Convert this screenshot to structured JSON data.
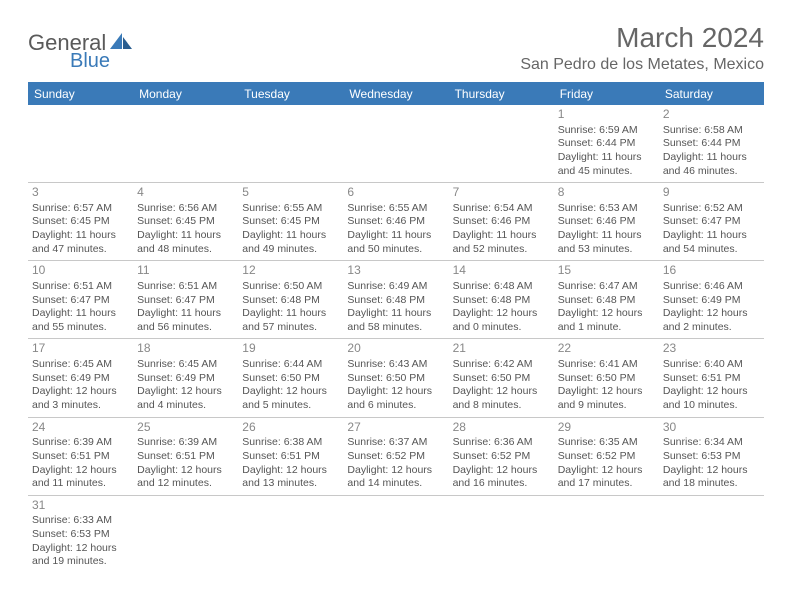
{
  "brand": {
    "part1": "General",
    "part2": "Blue"
  },
  "title": "March 2024",
  "location": "San Pedro de los Metates, Mexico",
  "colors": {
    "header_bg": "#3a7ab8",
    "header_fg": "#ffffff",
    "text": "#555555",
    "daynum": "#888888",
    "border": "#c8c8c8",
    "background": "#ffffff"
  },
  "weekdays": [
    "Sunday",
    "Monday",
    "Tuesday",
    "Wednesday",
    "Thursday",
    "Friday",
    "Saturday"
  ],
  "weeks": [
    [
      null,
      null,
      null,
      null,
      null,
      {
        "n": "1",
        "sr": "Sunrise: 6:59 AM",
        "ss": "Sunset: 6:44 PM",
        "d1": "Daylight: 11 hours",
        "d2": "and 45 minutes."
      },
      {
        "n": "2",
        "sr": "Sunrise: 6:58 AM",
        "ss": "Sunset: 6:44 PM",
        "d1": "Daylight: 11 hours",
        "d2": "and 46 minutes."
      }
    ],
    [
      {
        "n": "3",
        "sr": "Sunrise: 6:57 AM",
        "ss": "Sunset: 6:45 PM",
        "d1": "Daylight: 11 hours",
        "d2": "and 47 minutes."
      },
      {
        "n": "4",
        "sr": "Sunrise: 6:56 AM",
        "ss": "Sunset: 6:45 PM",
        "d1": "Daylight: 11 hours",
        "d2": "and 48 minutes."
      },
      {
        "n": "5",
        "sr": "Sunrise: 6:55 AM",
        "ss": "Sunset: 6:45 PM",
        "d1": "Daylight: 11 hours",
        "d2": "and 49 minutes."
      },
      {
        "n": "6",
        "sr": "Sunrise: 6:55 AM",
        "ss": "Sunset: 6:46 PM",
        "d1": "Daylight: 11 hours",
        "d2": "and 50 minutes."
      },
      {
        "n": "7",
        "sr": "Sunrise: 6:54 AM",
        "ss": "Sunset: 6:46 PM",
        "d1": "Daylight: 11 hours",
        "d2": "and 52 minutes."
      },
      {
        "n": "8",
        "sr": "Sunrise: 6:53 AM",
        "ss": "Sunset: 6:46 PM",
        "d1": "Daylight: 11 hours",
        "d2": "and 53 minutes."
      },
      {
        "n": "9",
        "sr": "Sunrise: 6:52 AM",
        "ss": "Sunset: 6:47 PM",
        "d1": "Daylight: 11 hours",
        "d2": "and 54 minutes."
      }
    ],
    [
      {
        "n": "10",
        "sr": "Sunrise: 6:51 AM",
        "ss": "Sunset: 6:47 PM",
        "d1": "Daylight: 11 hours",
        "d2": "and 55 minutes."
      },
      {
        "n": "11",
        "sr": "Sunrise: 6:51 AM",
        "ss": "Sunset: 6:47 PM",
        "d1": "Daylight: 11 hours",
        "d2": "and 56 minutes."
      },
      {
        "n": "12",
        "sr": "Sunrise: 6:50 AM",
        "ss": "Sunset: 6:48 PM",
        "d1": "Daylight: 11 hours",
        "d2": "and 57 minutes."
      },
      {
        "n": "13",
        "sr": "Sunrise: 6:49 AM",
        "ss": "Sunset: 6:48 PM",
        "d1": "Daylight: 11 hours",
        "d2": "and 58 minutes."
      },
      {
        "n": "14",
        "sr": "Sunrise: 6:48 AM",
        "ss": "Sunset: 6:48 PM",
        "d1": "Daylight: 12 hours",
        "d2": "and 0 minutes."
      },
      {
        "n": "15",
        "sr": "Sunrise: 6:47 AM",
        "ss": "Sunset: 6:48 PM",
        "d1": "Daylight: 12 hours",
        "d2": "and 1 minute."
      },
      {
        "n": "16",
        "sr": "Sunrise: 6:46 AM",
        "ss": "Sunset: 6:49 PM",
        "d1": "Daylight: 12 hours",
        "d2": "and 2 minutes."
      }
    ],
    [
      {
        "n": "17",
        "sr": "Sunrise: 6:45 AM",
        "ss": "Sunset: 6:49 PM",
        "d1": "Daylight: 12 hours",
        "d2": "and 3 minutes."
      },
      {
        "n": "18",
        "sr": "Sunrise: 6:45 AM",
        "ss": "Sunset: 6:49 PM",
        "d1": "Daylight: 12 hours",
        "d2": "and 4 minutes."
      },
      {
        "n": "19",
        "sr": "Sunrise: 6:44 AM",
        "ss": "Sunset: 6:50 PM",
        "d1": "Daylight: 12 hours",
        "d2": "and 5 minutes."
      },
      {
        "n": "20",
        "sr": "Sunrise: 6:43 AM",
        "ss": "Sunset: 6:50 PM",
        "d1": "Daylight: 12 hours",
        "d2": "and 6 minutes."
      },
      {
        "n": "21",
        "sr": "Sunrise: 6:42 AM",
        "ss": "Sunset: 6:50 PM",
        "d1": "Daylight: 12 hours",
        "d2": "and 8 minutes."
      },
      {
        "n": "22",
        "sr": "Sunrise: 6:41 AM",
        "ss": "Sunset: 6:50 PM",
        "d1": "Daylight: 12 hours",
        "d2": "and 9 minutes."
      },
      {
        "n": "23",
        "sr": "Sunrise: 6:40 AM",
        "ss": "Sunset: 6:51 PM",
        "d1": "Daylight: 12 hours",
        "d2": "and 10 minutes."
      }
    ],
    [
      {
        "n": "24",
        "sr": "Sunrise: 6:39 AM",
        "ss": "Sunset: 6:51 PM",
        "d1": "Daylight: 12 hours",
        "d2": "and 11 minutes."
      },
      {
        "n": "25",
        "sr": "Sunrise: 6:39 AM",
        "ss": "Sunset: 6:51 PM",
        "d1": "Daylight: 12 hours",
        "d2": "and 12 minutes."
      },
      {
        "n": "26",
        "sr": "Sunrise: 6:38 AM",
        "ss": "Sunset: 6:51 PM",
        "d1": "Daylight: 12 hours",
        "d2": "and 13 minutes."
      },
      {
        "n": "27",
        "sr": "Sunrise: 6:37 AM",
        "ss": "Sunset: 6:52 PM",
        "d1": "Daylight: 12 hours",
        "d2": "and 14 minutes."
      },
      {
        "n": "28",
        "sr": "Sunrise: 6:36 AM",
        "ss": "Sunset: 6:52 PM",
        "d1": "Daylight: 12 hours",
        "d2": "and 16 minutes."
      },
      {
        "n": "29",
        "sr": "Sunrise: 6:35 AM",
        "ss": "Sunset: 6:52 PM",
        "d1": "Daylight: 12 hours",
        "d2": "and 17 minutes."
      },
      {
        "n": "30",
        "sr": "Sunrise: 6:34 AM",
        "ss": "Sunset: 6:53 PM",
        "d1": "Daylight: 12 hours",
        "d2": "and 18 minutes."
      }
    ],
    [
      {
        "n": "31",
        "sr": "Sunrise: 6:33 AM",
        "ss": "Sunset: 6:53 PM",
        "d1": "Daylight: 12 hours",
        "d2": "and 19 minutes."
      },
      null,
      null,
      null,
      null,
      null,
      null
    ]
  ]
}
